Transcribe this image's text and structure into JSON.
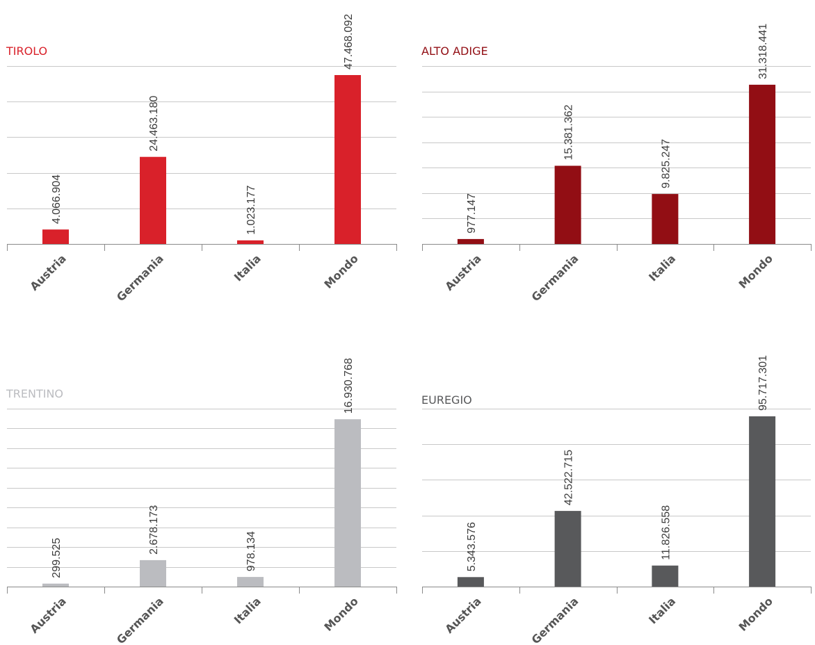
{
  "chart_data": [
    {
      "type": "bar",
      "title": "TIROLO",
      "color": "#d9212a",
      "categories": [
        "Austria",
        "Germania",
        "Italia",
        "Mondo"
      ],
      "values": [
        4066904,
        24463180,
        1023177,
        47468092
      ],
      "value_labels": [
        "4.066.904",
        "24.463.180",
        "1.023.177",
        "47.468.092"
      ],
      "ylim": [
        0,
        50000000
      ],
      "grid": true,
      "gridlines": 5
    },
    {
      "type": "bar",
      "title": "ALTO ADIGE",
      "color": "#920e14",
      "categories": [
        "Austria",
        "Germania",
        "Italia",
        "Mondo"
      ],
      "values": [
        977147,
        15381362,
        9825247,
        31318441
      ],
      "value_labels": [
        "977.147",
        "15.381.362",
        "9.825.247",
        "31.318.441"
      ],
      "ylim": [
        0,
        35000000
      ],
      "grid": true,
      "gridlines": 7
    },
    {
      "type": "bar",
      "title": "TRENTINO",
      "color": "#bbbcc0",
      "categories": [
        "Austria",
        "Germania",
        "Italia",
        "Mondo"
      ],
      "values": [
        299525,
        2678173,
        978134,
        16930768
      ],
      "value_labels": [
        "299.525",
        "2.678.173",
        "978.134",
        "16.930.768"
      ],
      "ylim": [
        0,
        18000000
      ],
      "grid": true,
      "gridlines": 9
    },
    {
      "type": "bar",
      "title": "EUREGIO",
      "color": "#58595b",
      "categories": [
        "Austria",
        "Germania",
        "Italia",
        "Mondo"
      ],
      "values": [
        5343576,
        42522715,
        11826558,
        95717301
      ],
      "value_labels": [
        "5.343.576",
        "42.522.715",
        "11.826.558",
        "95.717.301"
      ],
      "ylim": [
        0,
        100000000
      ],
      "grid": true,
      "gridlines": 5
    }
  ]
}
